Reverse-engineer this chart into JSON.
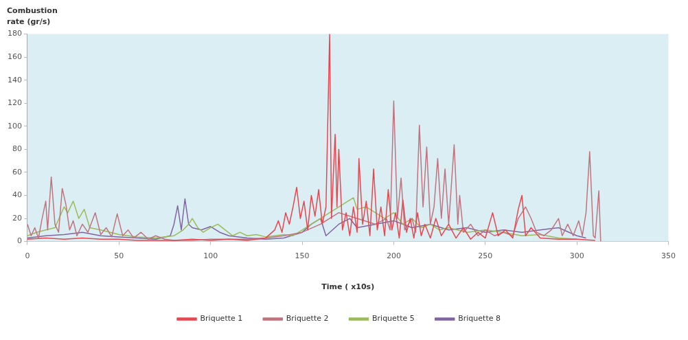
{
  "chart_data": {
    "type": "line",
    "ylabel": "Combustion rate (gr/s)",
    "xlabel": "Time ( x10s)",
    "xlim": [
      0,
      350
    ],
    "xticks": [
      0,
      50,
      100,
      150,
      200,
      250,
      300,
      350
    ],
    "ylim": [
      0,
      180
    ],
    "yticks": [
      0,
      20,
      40,
      60,
      80,
      100,
      120,
      140,
      160,
      180
    ],
    "grid": false,
    "legend": "bottom",
    "marker": "none",
    "line_style": "solid",
    "series": [
      {
        "name": "Briquette 1",
        "color": "#e8464f",
        "x": [
          0,
          10,
          20,
          30,
          40,
          50,
          60,
          70,
          80,
          90,
          100,
          110,
          120,
          130,
          135,
          137,
          139,
          141,
          143,
          145,
          147,
          149,
          151,
          153,
          155,
          157,
          159,
          161,
          163,
          165,
          166,
          168,
          169,
          170,
          172,
          174,
          176,
          178,
          180,
          181,
          183,
          185,
          187,
          189,
          191,
          193,
          195,
          197,
          199,
          201,
          203,
          205,
          207,
          209,
          211,
          213,
          215,
          217,
          220,
          223,
          226,
          230,
          234,
          238,
          242,
          246,
          250,
          254,
          257,
          261,
          265,
          268,
          270,
          272,
          275,
          280,
          290,
          300,
          310
        ],
        "values": [
          2,
          3,
          2,
          3,
          2,
          2,
          1,
          1,
          1,
          2,
          1,
          2,
          1,
          3,
          10,
          18,
          8,
          25,
          15,
          30,
          47,
          20,
          35,
          10,
          40,
          22,
          45,
          15,
          30,
          180,
          20,
          93,
          30,
          80,
          10,
          25,
          5,
          30,
          8,
          72,
          15,
          35,
          5,
          63,
          10,
          30,
          5,
          45,
          10,
          25,
          3,
          36,
          8,
          20,
          3,
          25,
          5,
          15,
          3,
          20,
          5,
          15,
          3,
          12,
          2,
          8,
          3,
          25,
          5,
          10,
          3,
          28,
          40,
          5,
          12,
          3,
          2,
          2,
          1
        ]
      },
      {
        "name": "Briquette 2",
        "color": "#c0737e",
        "x": [
          0,
          2,
          4,
          6,
          8,
          10,
          11,
          13,
          15,
          17,
          19,
          21,
          23,
          25,
          27,
          30,
          33,
          37,
          40,
          43,
          46,
          49,
          52,
          55,
          58,
          62,
          66,
          70,
          75,
          80,
          90,
          100,
          110,
          120,
          130,
          140,
          150,
          160,
          170,
          180,
          190,
          196,
          198,
          200,
          202,
          204,
          206,
          210,
          212,
          214,
          216,
          218,
          220,
          222,
          224,
          226,
          228,
          230,
          233,
          235,
          236,
          238,
          242,
          246,
          250,
          255,
          260,
          265,
          268,
          272,
          275,
          278,
          282,
          286,
          290,
          292,
          295,
          298,
          301,
          303,
          305,
          307,
          309,
          310,
          312,
          313
        ],
        "values": [
          15,
          5,
          12,
          3,
          20,
          35,
          10,
          56,
          15,
          8,
          46,
          32,
          10,
          18,
          5,
          15,
          8,
          25,
          6,
          12,
          4,
          24,
          5,
          10,
          3,
          8,
          2,
          5,
          2,
          1,
          1,
          2,
          2,
          2,
          3,
          5,
          8,
          15,
          25,
          20,
          15,
          20,
          10,
          122,
          20,
          55,
          10,
          20,
          8,
          101,
          30,
          82,
          15,
          30,
          72,
          20,
          63,
          15,
          84,
          15,
          40,
          8,
          15,
          5,
          10,
          5,
          8,
          5,
          20,
          30,
          20,
          8,
          5,
          10,
          20,
          5,
          15,
          5,
          18,
          5,
          25,
          78,
          5,
          3,
          44,
          0
        ]
      },
      {
        "name": "Briquette 5",
        "color": "#9bbb59",
        "x": [
          0,
          5,
          10,
          15,
          20,
          22,
          25,
          28,
          31,
          34,
          40,
          50,
          60,
          70,
          80,
          85,
          88,
          90,
          93,
          96,
          100,
          104,
          108,
          112,
          116,
          120,
          125,
          130,
          135,
          140,
          145,
          150,
          155,
          160,
          165,
          170,
          175,
          178,
          180,
          185,
          190,
          195,
          200,
          205,
          210,
          215,
          220,
          225,
          230,
          240,
          250,
          260,
          270,
          280,
          290,
          300
        ],
        "values": [
          5,
          8,
          10,
          12,
          30,
          25,
          35,
          20,
          28,
          12,
          10,
          6,
          4,
          3,
          5,
          10,
          15,
          20,
          12,
          8,
          12,
          15,
          10,
          5,
          8,
          5,
          6,
          4,
          5,
          6,
          5,
          10,
          15,
          20,
          25,
          30,
          35,
          38,
          28,
          30,
          25,
          20,
          25,
          15,
          20,
          12,
          15,
          10,
          12,
          8,
          10,
          8,
          5,
          6,
          3,
          2
        ]
      },
      {
        "name": "Briquette 8",
        "color": "#8064a2",
        "x": [
          0,
          10,
          20,
          30,
          40,
          50,
          60,
          70,
          78,
          80,
          82,
          84,
          86,
          88,
          90,
          95,
          100,
          105,
          110,
          120,
          130,
          140,
          150,
          155,
          160,
          163,
          170,
          176,
          180,
          190,
          200,
          210,
          220,
          230,
          240,
          250,
          260,
          270,
          280,
          290,
          300,
          305
        ],
        "values": [
          3,
          5,
          6,
          8,
          5,
          4,
          3,
          2,
          5,
          15,
          31,
          10,
          37,
          15,
          12,
          10,
          13,
          8,
          5,
          3,
          2,
          3,
          8,
          15,
          20,
          5,
          15,
          20,
          12,
          15,
          18,
          12,
          15,
          10,
          12,
          8,
          10,
          8,
          10,
          12,
          5,
          3
        ]
      }
    ]
  }
}
